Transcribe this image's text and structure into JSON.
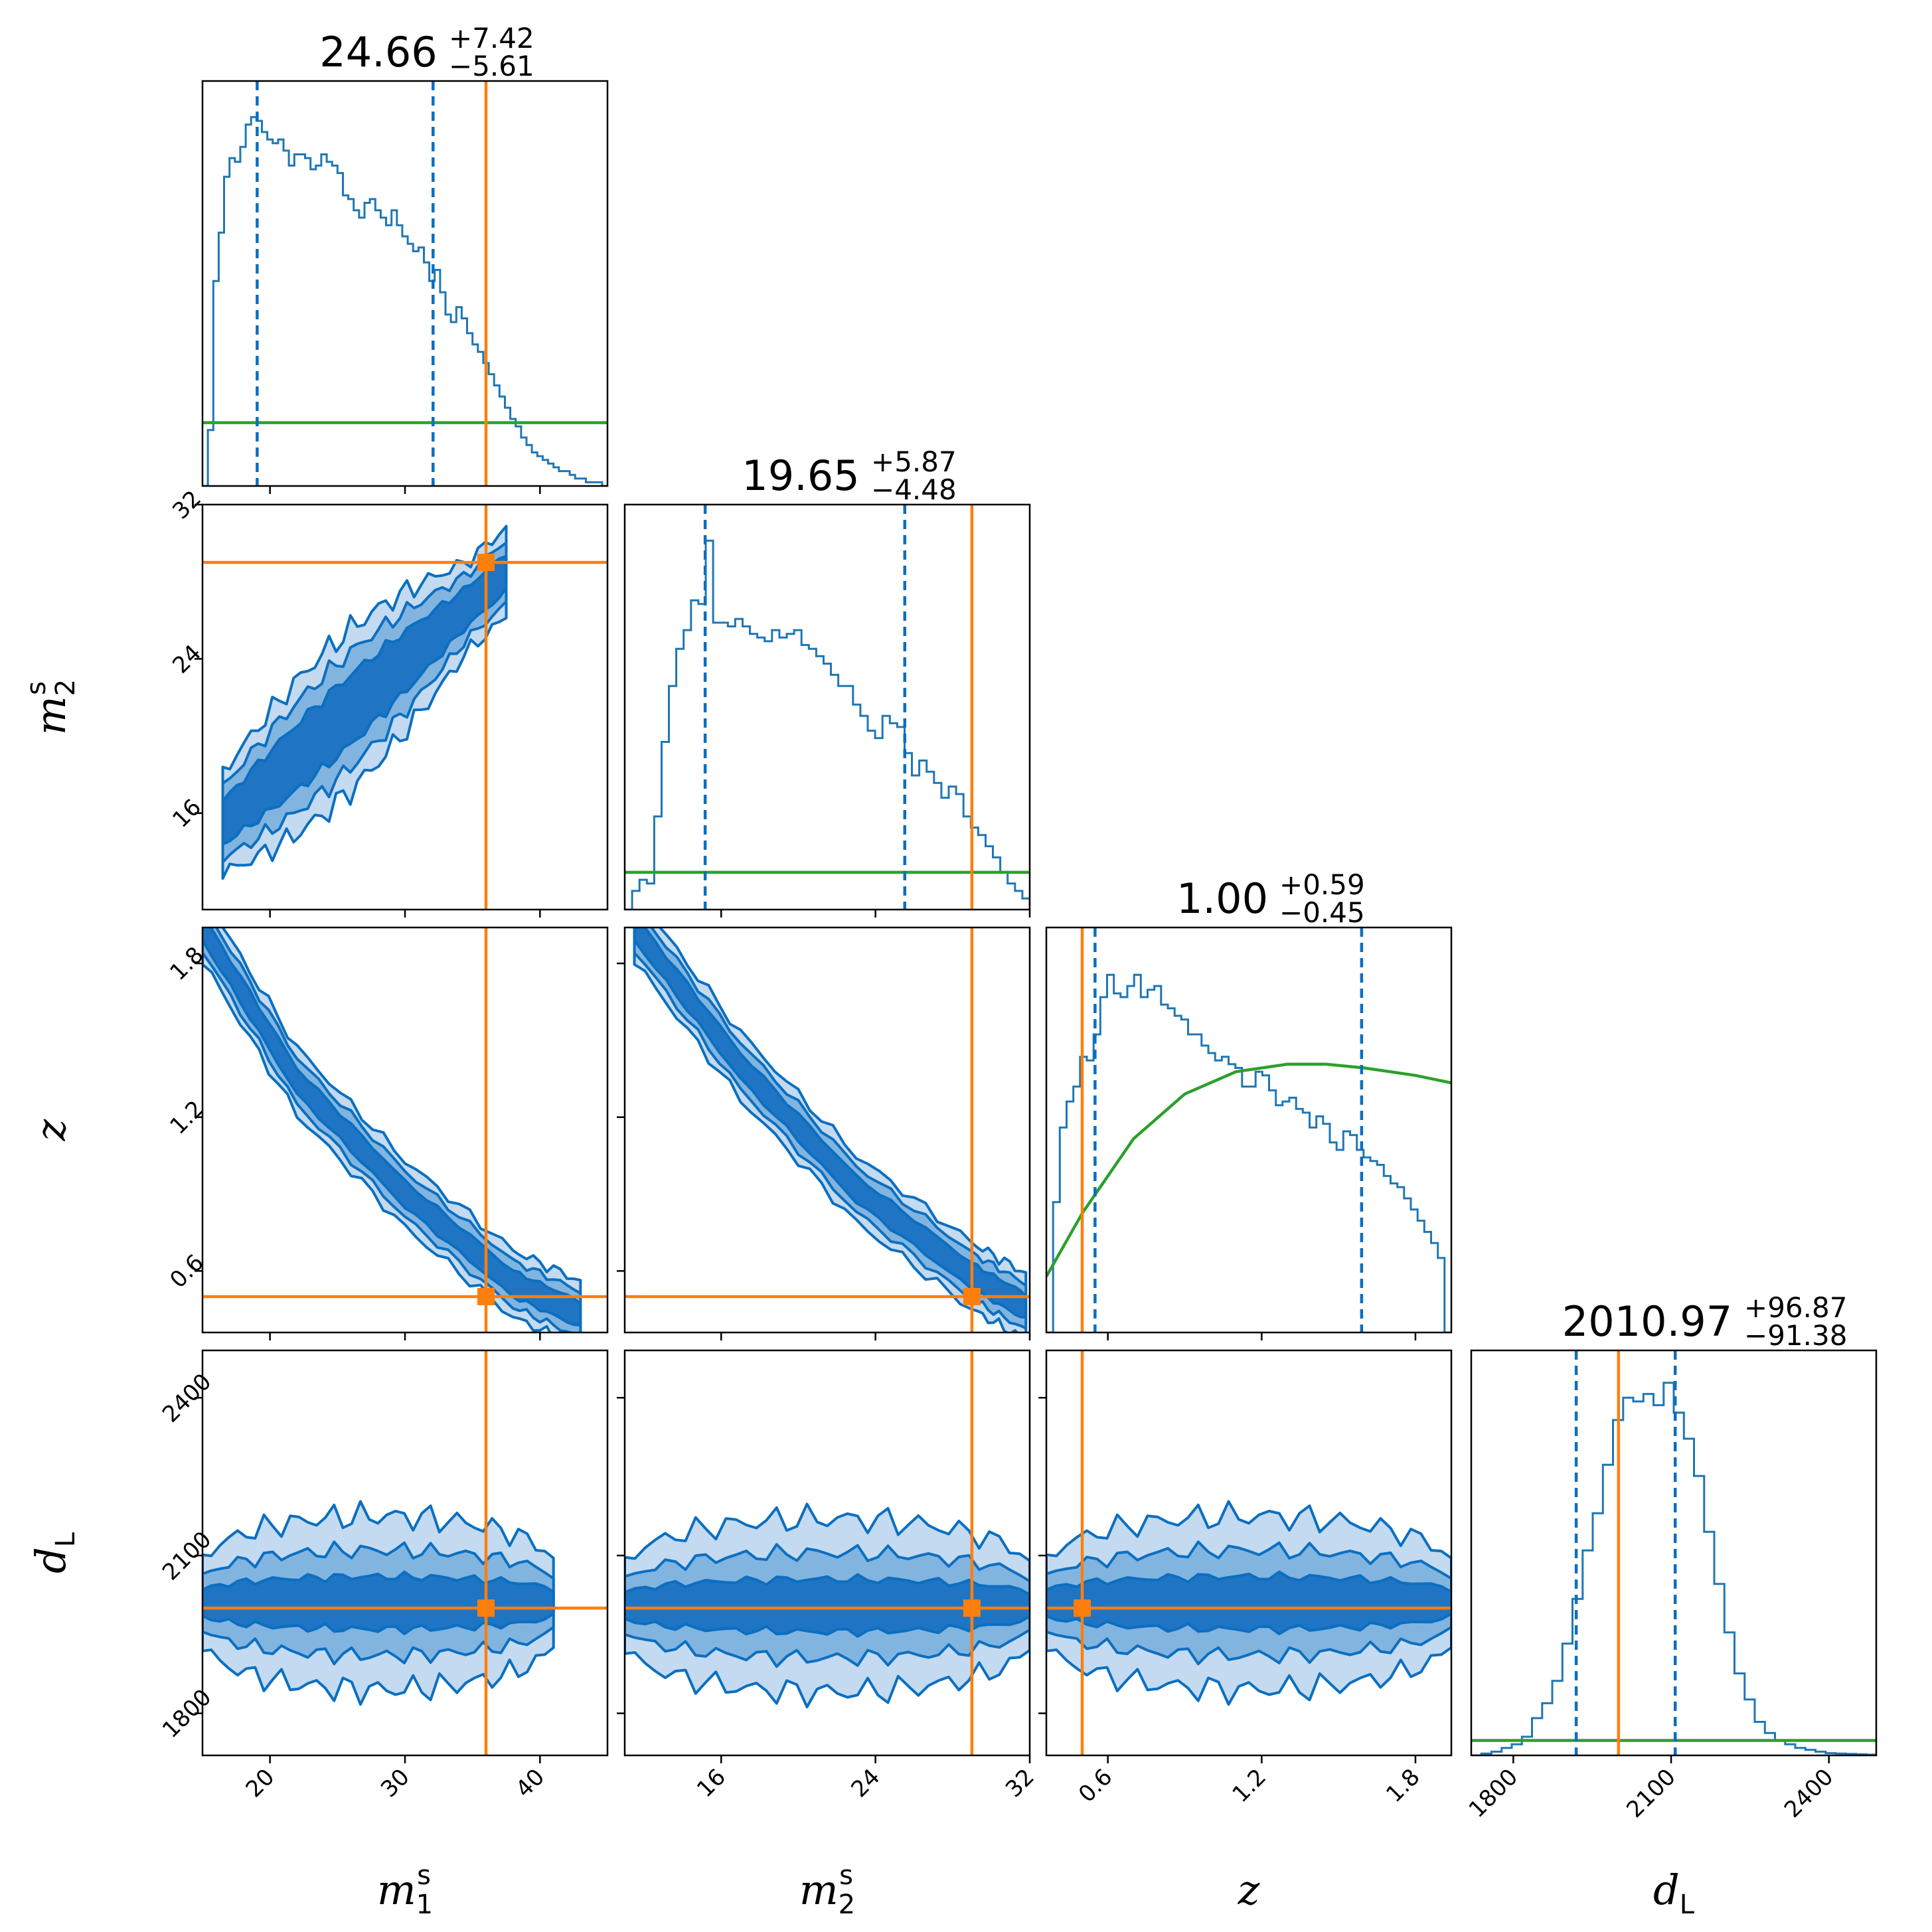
{
  "colors": {
    "posterior": "#1f77b4",
    "posterior_dark": "#0b6fc0",
    "level1": "#c3daf0",
    "level2": "#82b4e0",
    "level3": "#1f74c3",
    "truth": "#ff7f0e",
    "prior": "#2ca02c"
  },
  "chart_data": {
    "type": "corner",
    "parameters": [
      {
        "key": "m1",
        "label_main": "m",
        "label_sub": "1",
        "label_sup": "s",
        "range": [
          15,
          45
        ],
        "ticks": [
          20,
          30,
          40
        ],
        "tick_labels": [
          "20",
          "30",
          "40"
        ]
      },
      {
        "key": "m2",
        "label_main": "m",
        "label_sub": "2",
        "label_sup": "s",
        "range": [
          11,
          32
        ],
        "ticks": [
          16,
          24,
          32
        ],
        "tick_labels": [
          "16",
          "24",
          "32"
        ]
      },
      {
        "key": "z",
        "label_main": "z",
        "label_sub": "",
        "label_sup": "",
        "range": [
          0.36,
          1.94
        ],
        "ticks": [
          0.6,
          1.2,
          1.8
        ],
        "tick_labels": [
          "0.6",
          "1.2",
          "1.8"
        ]
      },
      {
        "key": "dL",
        "label_main": "d",
        "label_sub": "L",
        "label_sup": "",
        "range": [
          1720,
          2490
        ],
        "ticks": [
          1800,
          2100,
          2400
        ],
        "tick_labels": [
          "1800",
          "2100",
          "2400"
        ]
      }
    ],
    "titles": [
      {
        "main": "24.66",
        "plus": "+7.42",
        "minus": "−5.61"
      },
      {
        "main": "19.65",
        "plus": "+5.87",
        "minus": "−4.48"
      },
      {
        "main": "1.00",
        "plus": "+0.59",
        "minus": "−0.45"
      },
      {
        "main": "2010.97",
        "plus": "+96.87",
        "minus": "−91.38"
      }
    ],
    "truths": [
      36.0,
      29.0,
      0.5,
      2000
    ],
    "quantiles": [
      [
        19.05,
        32.08
      ],
      [
        15.17,
        25.52
      ],
      [
        0.55,
        1.59
      ],
      [
        1919.6,
        2107.8
      ]
    ],
    "histograms": [
      {
        "edges_start": 15,
        "edges_end": 45,
        "counts": [
          0.0,
          0.15,
          0.55,
          0.68,
          0.83,
          0.88,
          0.87,
          0.91,
          0.97,
          0.99,
          0.98,
          0.95,
          0.93,
          0.92,
          0.93,
          0.9,
          0.86,
          0.89,
          0.89,
          0.88,
          0.85,
          0.86,
          0.89,
          0.87,
          0.86,
          0.84,
          0.78,
          0.77,
          0.74,
          0.72,
          0.76,
          0.77,
          0.74,
          0.72,
          0.7,
          0.74,
          0.7,
          0.67,
          0.65,
          0.63,
          0.64,
          0.6,
          0.55,
          0.58,
          0.52,
          0.46,
          0.44,
          0.48,
          0.45,
          0.41,
          0.38,
          0.36,
          0.33,
          0.3,
          0.27,
          0.24,
          0.21,
          0.18,
          0.16,
          0.13,
          0.11,
          0.09,
          0.08,
          0.07,
          0.06,
          0.05,
          0.04,
          0.04,
          0.03,
          0.02,
          0.02,
          0.01,
          0.01,
          0.01,
          0.0
        ]
      },
      {
        "edges_start": 11,
        "edges_end": 32,
        "counts": [
          0.0,
          0.05,
          0.08,
          0.07,
          0.25,
          0.45,
          0.6,
          0.7,
          0.75,
          0.83,
          0.82,
          0.99,
          0.77,
          0.77,
          0.76,
          0.78,
          0.76,
          0.74,
          0.73,
          0.72,
          0.75,
          0.73,
          0.74,
          0.75,
          0.71,
          0.7,
          0.68,
          0.66,
          0.63,
          0.6,
          0.6,
          0.55,
          0.52,
          0.48,
          0.46,
          0.52,
          0.5,
          0.49,
          0.42,
          0.36,
          0.4,
          0.37,
          0.34,
          0.3,
          0.33,
          0.31,
          0.25,
          0.22,
          0.2,
          0.17,
          0.14,
          0.1,
          0.07,
          0.05,
          0.03
        ]
      },
      {
        "edges_start": 0.36,
        "edges_end": 1.94,
        "counts": [
          0.0,
          0.35,
          0.55,
          0.62,
          0.66,
          0.74,
          0.73,
          0.8,
          0.9,
          0.96,
          0.91,
          0.9,
          0.93,
          0.96,
          0.9,
          0.92,
          0.93,
          0.88,
          0.87,
          0.85,
          0.84,
          0.8,
          0.8,
          0.77,
          0.75,
          0.73,
          0.74,
          0.72,
          0.71,
          0.66,
          0.66,
          0.7,
          0.69,
          0.65,
          0.61,
          0.62,
          0.63,
          0.6,
          0.59,
          0.55,
          0.58,
          0.56,
          0.51,
          0.49,
          0.54,
          0.53,
          0.49,
          0.47,
          0.46,
          0.45,
          0.42,
          0.4,
          0.39,
          0.36,
          0.33,
          0.3,
          0.27,
          0.24,
          0.2,
          0.0
        ]
      },
      {
        "edges_start": 1720,
        "edges_end": 2490,
        "counts": [
          0.0,
          0.005,
          0.01,
          0.02,
          0.03,
          0.05,
          0.1,
          0.14,
          0.2,
          0.3,
          0.42,
          0.55,
          0.65,
          0.78,
          0.9,
          0.96,
          0.95,
          0.97,
          0.94,
          1.0,
          0.92,
          0.85,
          0.75,
          0.6,
          0.46,
          0.33,
          0.22,
          0.15,
          0.09,
          0.06,
          0.04,
          0.03,
          0.02,
          0.015,
          0.01,
          0.006,
          0.005,
          0.004,
          0.003,
          0.002
        ]
      }
    ],
    "prior_curves": [
      {
        "type": "flat",
        "level": 0.17
      },
      {
        "type": "flat",
        "level": 0.1
      },
      {
        "type": "curve",
        "x": [
          0.36,
          0.5,
          0.7,
          0.9,
          1.1,
          1.3,
          1.45,
          1.6,
          1.8,
          1.94
        ],
        "y": [
          0.15,
          0.32,
          0.52,
          0.64,
          0.7,
          0.72,
          0.72,
          0.71,
          0.69,
          0.67
        ]
      },
      {
        "type": "flat",
        "level": 0.04
      }
    ],
    "panel_models": [
      {
        "row": 1,
        "col": 0,
        "form": "linear",
        "cx": [
          16.5,
          37.5
        ],
        "cy": [
          15.5,
          28.5
        ],
        "widths": [
          1.8,
          3.0,
          4.2
        ]
      },
      {
        "row": 2,
        "col": 0,
        "form": "curve",
        "cx": [
          15.0,
          22.0,
          30.0,
          38.0,
          43.0
        ],
        "cy": [
          1.94,
          1.34,
          0.9,
          0.55,
          0.43
        ],
        "widths": [
          0.05,
          0.09,
          0.13
        ]
      },
      {
        "row": 2,
        "col": 1,
        "form": "curve",
        "cx": [
          11.5,
          17.0,
          23.0,
          29.0,
          31.8
        ],
        "cy": [
          1.94,
          1.4,
          0.92,
          0.58,
          0.46
        ],
        "widths": [
          0.05,
          0.09,
          0.13
        ]
      },
      {
        "row": 3,
        "col": 0,
        "form": "blob",
        "cx": [
          15.0,
          41.0
        ],
        "cy": [
          2010,
          2010
        ],
        "widths": [
          50,
          100,
          165
        ]
      },
      {
        "row": 3,
        "col": 1,
        "form": "blob",
        "cx": [
          11.0,
          32.0
        ],
        "cy": [
          2005,
          2005
        ],
        "widths": [
          50,
          100,
          165
        ]
      },
      {
        "row": 3,
        "col": 2,
        "form": "blob",
        "cx": [
          0.36,
          1.94
        ],
        "cy": [
          2010,
          2010
        ],
        "widths": [
          50,
          100,
          165
        ]
      }
    ]
  }
}
